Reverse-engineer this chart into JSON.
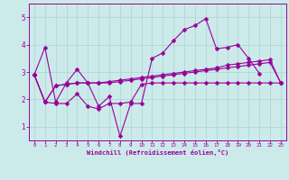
{
  "background_color": "#cceaea",
  "line_color": "#990099",
  "grid_color": "#aad4d4",
  "xlabel": "Windchill (Refroidissement éolien,°C)",
  "xlabel_color": "#990099",
  "tick_color": "#990099",
  "xlim": [
    -0.5,
    23.5
  ],
  "ylim": [
    0.5,
    5.5
  ],
  "yticks": [
    1,
    2,
    3,
    4,
    5
  ],
  "xticks": [
    0,
    1,
    2,
    3,
    4,
    5,
    6,
    7,
    8,
    9,
    10,
    11,
    12,
    13,
    14,
    15,
    16,
    17,
    18,
    19,
    20,
    21,
    22,
    23
  ],
  "line1_x": [
    0,
    1,
    2,
    3,
    4,
    5,
    6,
    7,
    8,
    9,
    10,
    11,
    12,
    13,
    14,
    15,
    16,
    17,
    18,
    19,
    20,
    21
  ],
  "line1_y": [
    2.9,
    3.9,
    1.9,
    2.6,
    3.1,
    2.6,
    1.75,
    2.1,
    0.65,
    1.85,
    1.85,
    3.5,
    3.7,
    4.15,
    4.55,
    4.7,
    4.95,
    3.85,
    3.9,
    4.0,
    3.5,
    2.95
  ],
  "line2_x": [
    0,
    1,
    2,
    3,
    4,
    5,
    6,
    7,
    8,
    9,
    10,
    11,
    12,
    13,
    14,
    15,
    16,
    17,
    18,
    19,
    20,
    21,
    22,
    23
  ],
  "line2_y": [
    2.9,
    1.9,
    2.5,
    2.55,
    2.6,
    2.6,
    2.6,
    2.65,
    2.7,
    2.75,
    2.8,
    2.85,
    2.9,
    2.95,
    3.0,
    3.05,
    3.1,
    3.15,
    3.25,
    3.3,
    3.35,
    3.4,
    3.45,
    2.6
  ],
  "line3_x": [
    0,
    1,
    2,
    3,
    4,
    5,
    6,
    7,
    8,
    9,
    10,
    11,
    12,
    13,
    14,
    15,
    16,
    17,
    18,
    19,
    20,
    21,
    22,
    23
  ],
  "line3_y": [
    2.9,
    1.9,
    2.5,
    2.55,
    2.6,
    2.6,
    2.6,
    2.6,
    2.65,
    2.7,
    2.75,
    2.8,
    2.85,
    2.9,
    2.95,
    3.0,
    3.05,
    3.1,
    3.15,
    3.2,
    3.25,
    3.3,
    3.35,
    2.6
  ],
  "line4_x": [
    0,
    1,
    2,
    3,
    4,
    5,
    6,
    7,
    8,
    9,
    10,
    11,
    12,
    13,
    14,
    15,
    16,
    17,
    18,
    19,
    20,
    21,
    22,
    23
  ],
  "line4_y": [
    2.9,
    1.9,
    1.85,
    1.85,
    2.2,
    1.75,
    1.65,
    1.85,
    1.85,
    1.9,
    2.55,
    2.6,
    2.6,
    2.6,
    2.6,
    2.6,
    2.6,
    2.6,
    2.6,
    2.6,
    2.6,
    2.6,
    2.6,
    2.6
  ]
}
